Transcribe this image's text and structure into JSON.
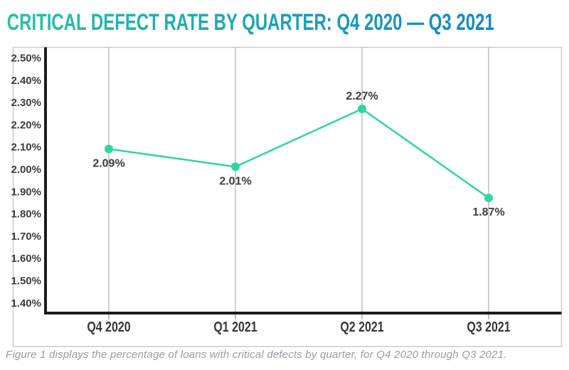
{
  "title": "CRITICAL DEFECT RATE BY QUARTER: Q4 2020 — Q3 2021",
  "caption": "Figure 1 displays the percentage of loans with critical defects by quarter, for Q4 2020 through Q3 2021.",
  "colors": {
    "title_gradient_start": "#26c3a4",
    "title_gradient_end": "#1487c9",
    "line": "#31d69d",
    "gridline": "#b3b3b3",
    "tick": "#9e9e9e",
    "axis": "#1c1c1c",
    "tick_label": "#3d3d3d",
    "x_label": "#383838",
    "data_label": "#3d3d3d",
    "figure_border": "#cbcbcb"
  },
  "chart_data": {
    "type": "line",
    "title": "CRITICAL DEFECT RATE BY QUARTER: Q4 2020 — Q3 2021",
    "categories": [
      "Q4 2020",
      "Q1 2021",
      "Q2 2021",
      "Q3 2021"
    ],
    "series": [
      {
        "name": "Critical defect rate",
        "values": [
          2.09,
          2.01,
          2.27,
          1.87
        ]
      }
    ],
    "point_labels": [
      "2.09%",
      "2.01%",
      "2.27%",
      "1.87%"
    ],
    "point_label_positions": [
      "below",
      "below",
      "above",
      "below"
    ],
    "y_ticks": [
      "2.50%",
      "2.40%",
      "2.30%",
      "2.20%",
      "2.10%",
      "2.00%",
      "1.90%",
      "1.80%",
      "1.70%",
      "1.60%",
      "1.50%",
      "1.40%"
    ],
    "ylim": [
      1.4,
      2.5
    ],
    "xlabel": "",
    "ylabel": "",
    "grid": "vertical-only",
    "legend": "none"
  }
}
